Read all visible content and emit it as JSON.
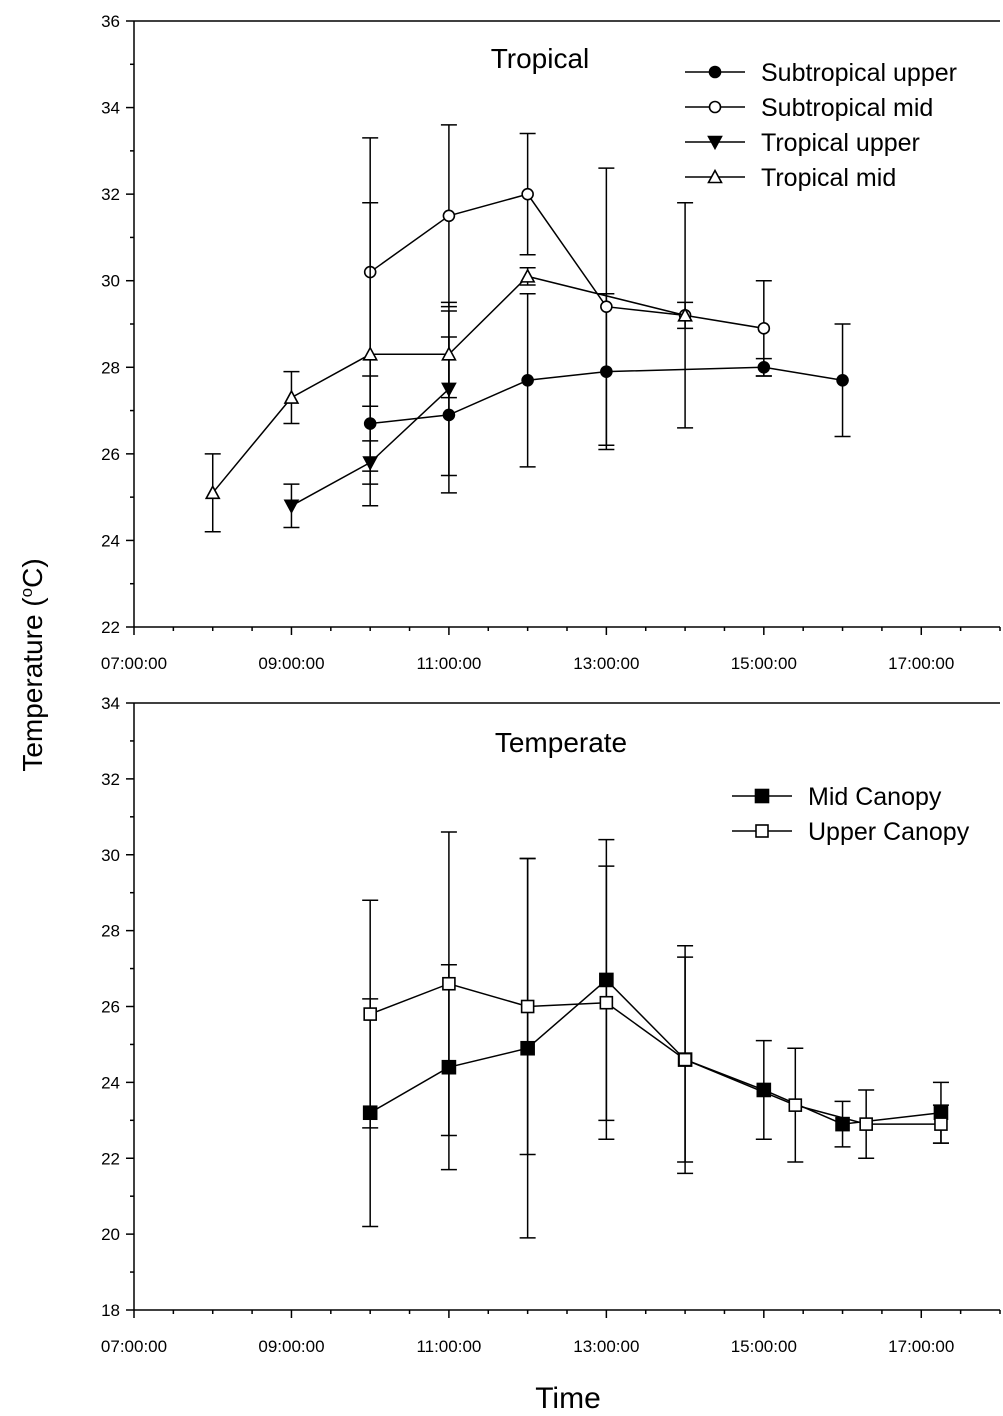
{
  "figure": {
    "ylabel_text": "Temperature (",
    "ylabel_sup": "o",
    "ylabel_unit": "C)",
    "xlabel": "Time"
  },
  "chart_data": [
    {
      "type": "line",
      "title": "Tropical",
      "xlabel": "",
      "ylabel": "Temperature (oC)",
      "xlim": [
        7,
        18
      ],
      "xticks": [
        "07:00:00",
        "09:00:00",
        "11:00:00",
        "13:00:00",
        "15:00:00",
        "17:00:00"
      ],
      "ylim": [
        22,
        36
      ],
      "yticks": [
        22,
        24,
        26,
        28,
        30,
        32,
        34,
        36
      ],
      "legend_position": "top-right",
      "series": [
        {
          "name": "Subtropical upper",
          "marker": "filled-circle",
          "x": [
            10,
            11,
            12,
            13,
            15,
            16
          ],
          "y": [
            26.7,
            26.9,
            27.7,
            27.9,
            28.0,
            27.7
          ],
          "err": [
            1.1,
            1.8,
            2.0,
            1.8,
            0.2,
            1.3
          ]
        },
        {
          "name": "Subtropical mid",
          "marker": "open-circle",
          "x": [
            10,
            11,
            12,
            13,
            14,
            15
          ],
          "y": [
            30.2,
            31.5,
            32.0,
            29.4,
            29.2,
            28.9
          ],
          "err": [
            3.1,
            2.1,
            1.4,
            3.2,
            2.6,
            1.1
          ]
        },
        {
          "name": "Tropical upper",
          "marker": "filled-triangle-down",
          "x": [
            9,
            10,
            11
          ],
          "y": [
            24.8,
            25.8,
            27.5
          ],
          "err": [
            0.5,
            0.5,
            2.0
          ]
        },
        {
          "name": "Tropical mid",
          "marker": "open-triangle-up",
          "x": [
            8,
            9,
            10,
            11,
            12,
            14
          ],
          "y": [
            25.1,
            27.3,
            28.3,
            28.3,
            30.1,
            29.2
          ],
          "err": [
            0.9,
            0.6,
            3.5,
            1.0,
            0.2,
            0.3
          ]
        }
      ]
    },
    {
      "type": "line",
      "title": "Temperate",
      "xlabel": "Time",
      "ylabel": "Temperature (oC)",
      "xlim": [
        7,
        18
      ],
      "xticks": [
        "07:00:00",
        "09:00:00",
        "11:00:00",
        "13:00:00",
        "15:00:00",
        "17:00:00"
      ],
      "ylim": [
        18,
        34
      ],
      "yticks": [
        18,
        20,
        22,
        24,
        26,
        28,
        30,
        32,
        34
      ],
      "legend_position": "top-right",
      "series": [
        {
          "name": "Mid Canopy",
          "marker": "filled-square",
          "x": [
            10,
            11,
            12,
            13,
            14,
            15,
            16,
            17.25
          ],
          "y": [
            23.2,
            24.4,
            24.9,
            26.7,
            24.6,
            23.8,
            22.9,
            23.2
          ],
          "err": [
            3.0,
            2.7,
            5.0,
            3.7,
            3.0,
            1.3,
            0.6,
            0.8
          ]
        },
        {
          "name": "Upper Canopy",
          "marker": "open-square",
          "x": [
            10,
            11,
            12,
            13,
            14,
            15.4,
            16.3,
            17.25
          ],
          "y": [
            25.8,
            26.6,
            26.0,
            26.1,
            24.6,
            23.4,
            22.9,
            22.9
          ],
          "err": [
            3.0,
            4.0,
            3.9,
            3.6,
            2.7,
            1.5,
            0.9,
            0.5
          ]
        }
      ]
    }
  ]
}
